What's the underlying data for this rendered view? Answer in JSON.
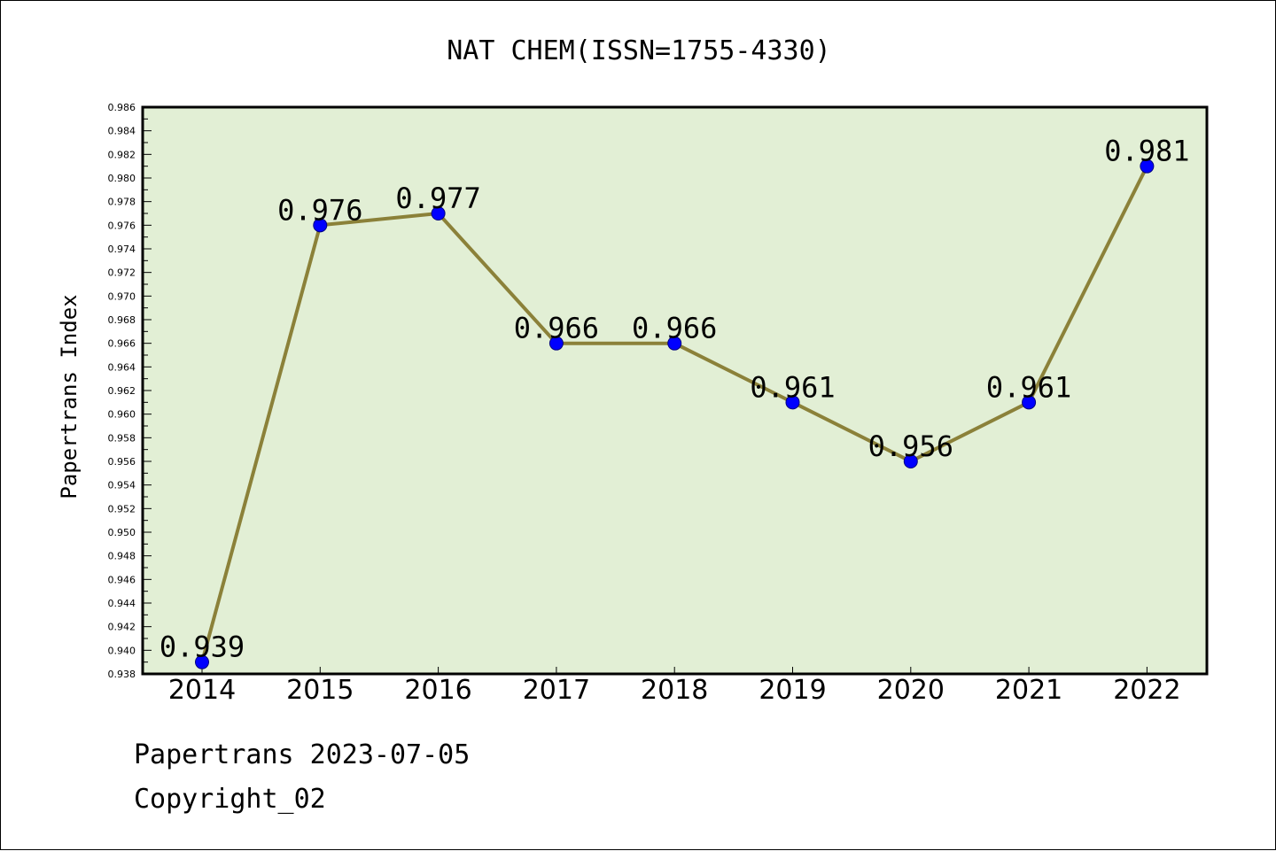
{
  "chart_data": {
    "type": "line",
    "title": "NAT CHEM(ISSN=1755-4330)",
    "xlabel": "",
    "ylabel": "Papertrans Index",
    "categories": [
      "2014",
      "2015",
      "2016",
      "2017",
      "2018",
      "2019",
      "2020",
      "2021",
      "2022"
    ],
    "series": [
      {
        "values": [
          0.939,
          0.976,
          0.977,
          0.966,
          0.966,
          0.961,
          0.956,
          0.961,
          0.981
        ],
        "labels": [
          "0.939",
          "0.976",
          "0.977",
          "0.966",
          "0.966",
          "0.961",
          "0.956",
          "0.961",
          "0.981"
        ]
      }
    ],
    "ylim": [
      0.938,
      0.986
    ],
    "yticks": [
      "0.938",
      "0.940",
      "0.942",
      "0.944",
      "0.946",
      "0.948",
      "0.950",
      "0.952",
      "0.954",
      "0.956",
      "0.958",
      "0.960",
      "0.962",
      "0.964",
      "0.966",
      "0.968",
      "0.970",
      "0.972",
      "0.974",
      "0.976",
      "0.978",
      "0.980",
      "0.982",
      "0.984",
      "0.986"
    ],
    "grid": false,
    "colors": {
      "plot_background": "#e2efd5",
      "line": "#8b8139",
      "marker": "#0000ff",
      "text": "#000000"
    }
  },
  "footer": {
    "line1": "Papertrans 2023-07-05",
    "line2": "Copyright_02"
  }
}
